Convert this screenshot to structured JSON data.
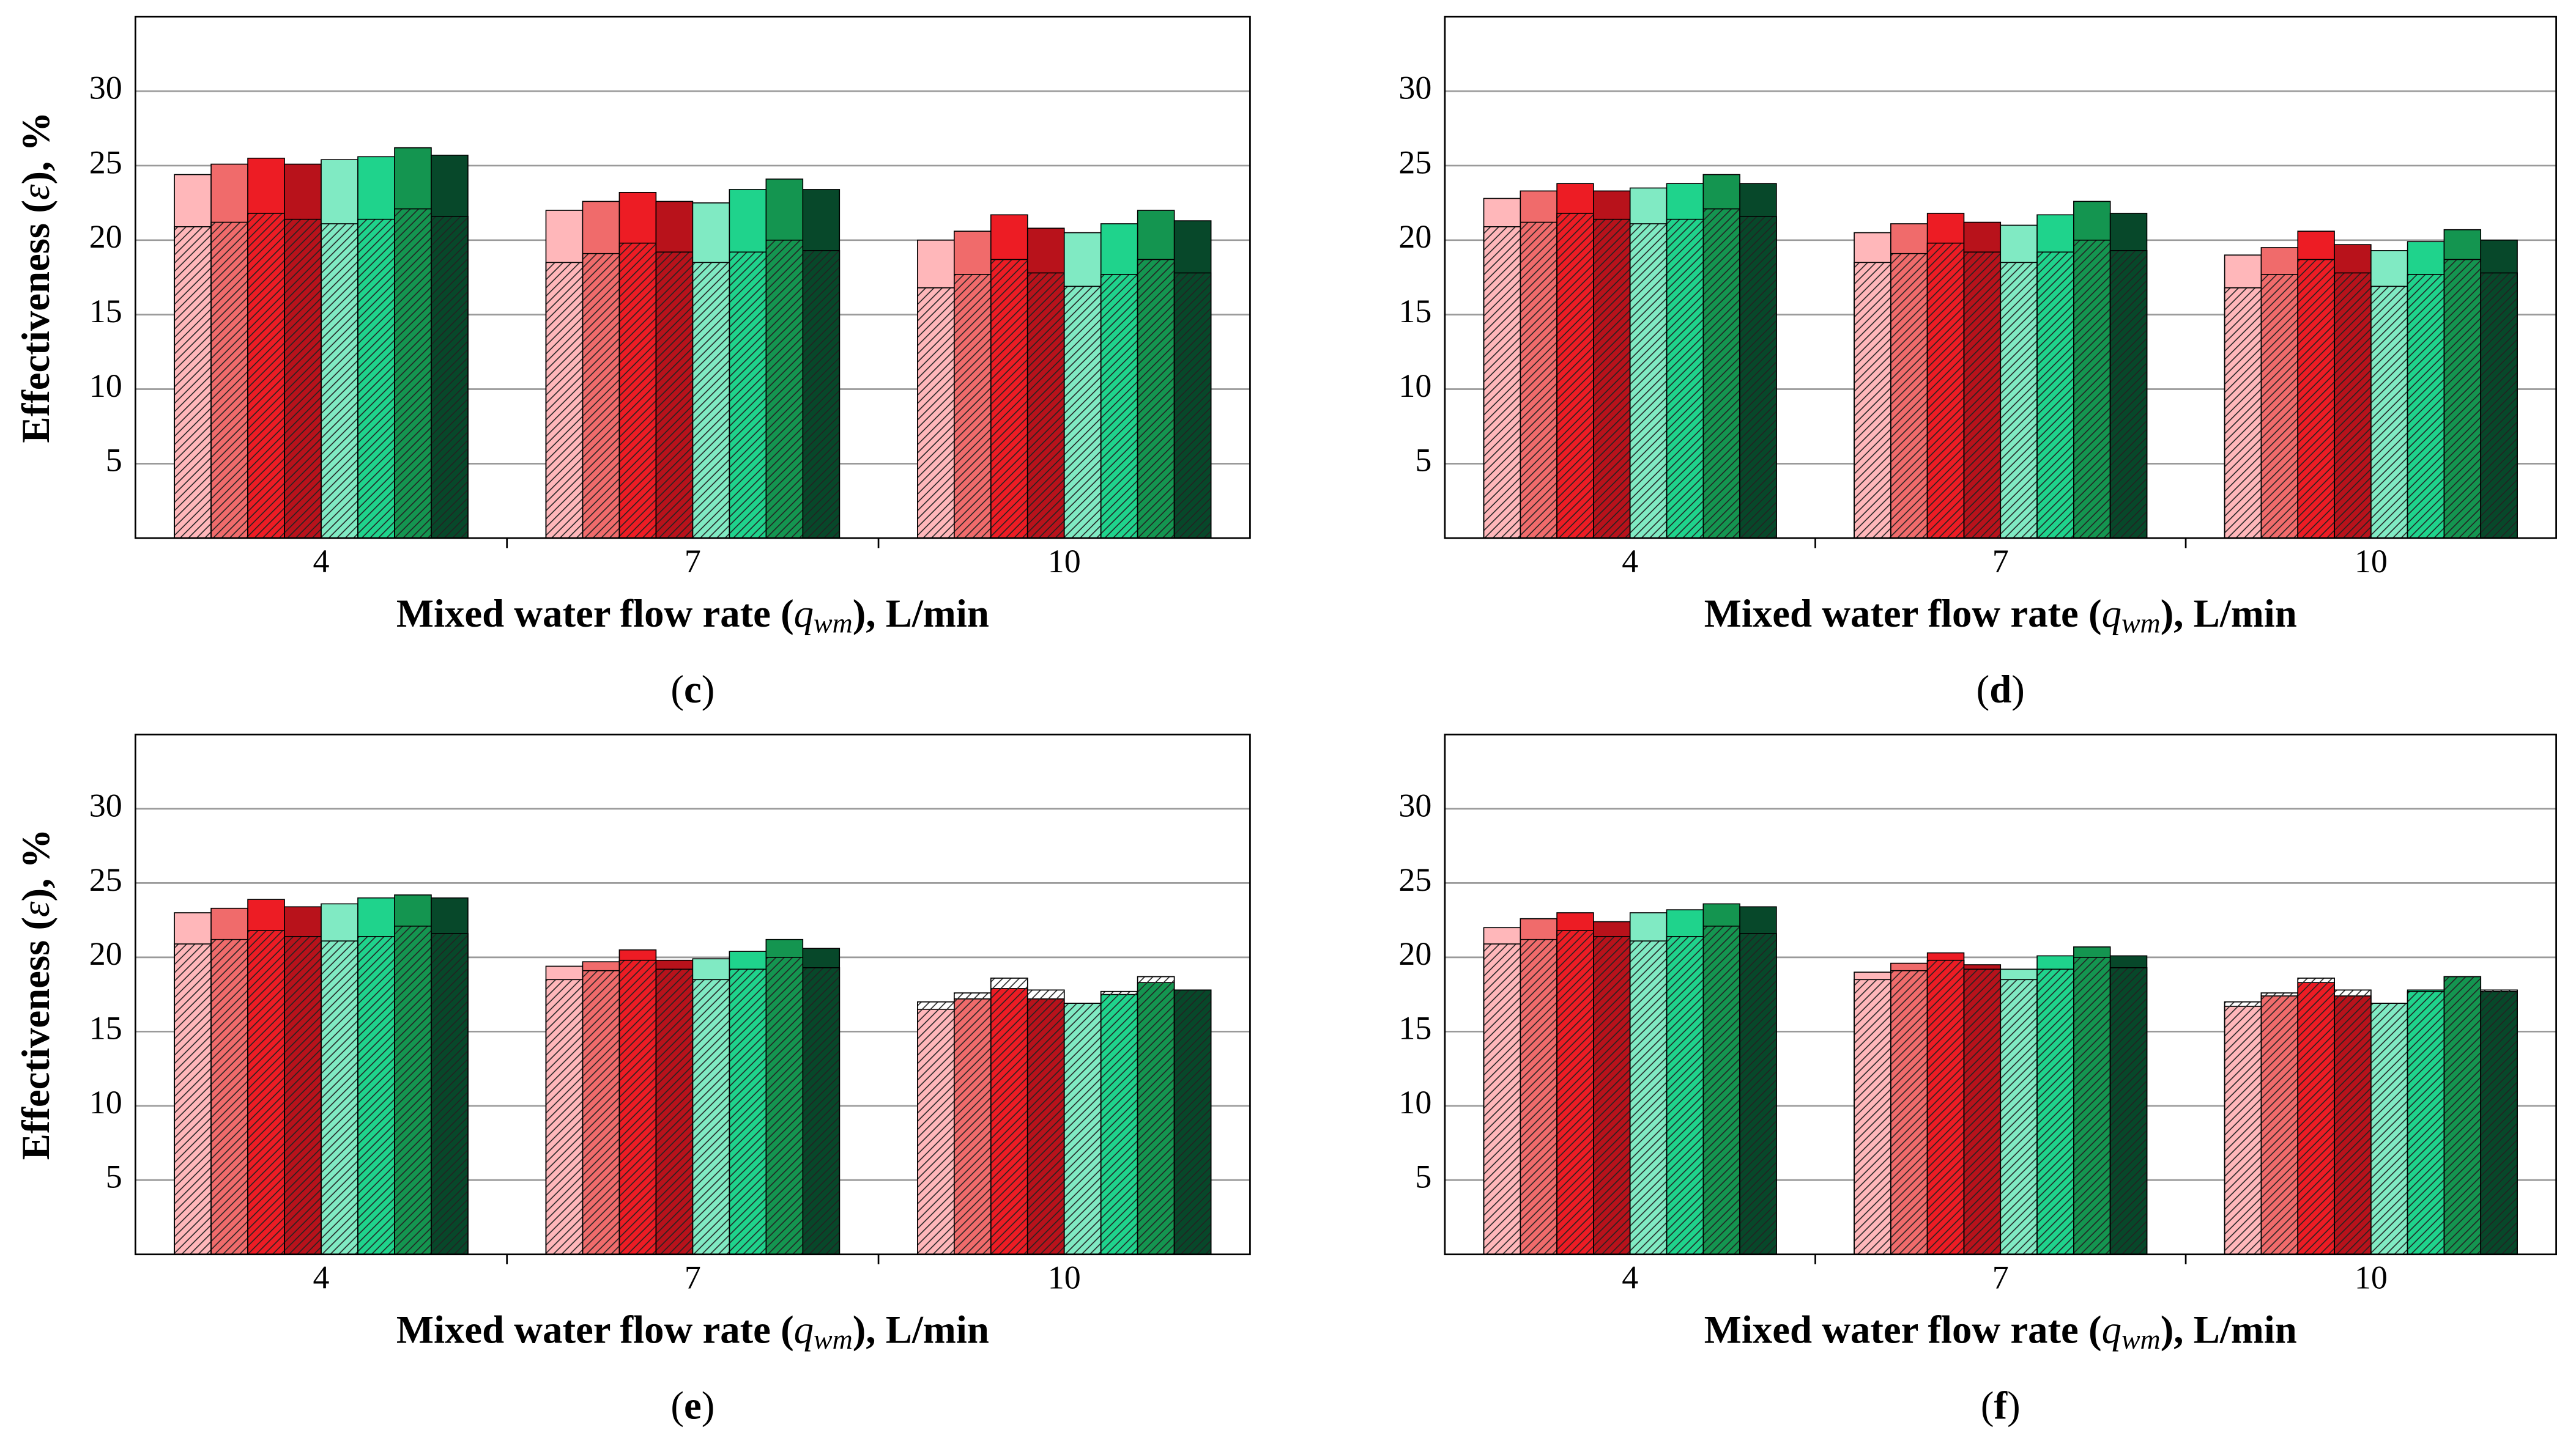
{
  "chart_data": [
    {
      "type": "bar",
      "caption": {
        "open": "(",
        "letter": "c",
        "close": ")"
      },
      "xlabel": {
        "before": "Mixed water flow rate (",
        "var": "q",
        "sub": "wm",
        "after": "), L/min"
      },
      "ylabel": {
        "before": "Effectiveness (",
        "var": "ε",
        "after": "), %"
      },
      "categories": [
        "4",
        "7",
        "10"
      ],
      "ylim": [
        0,
        35
      ],
      "yticks": [
        5,
        10,
        15,
        20,
        25,
        30
      ],
      "grid": true,
      "series": [
        {
          "color": "#ffb7ba",
          "values": [
            24.4,
            22.0,
            20.0
          ],
          "hatched_values": [
            20.9,
            18.5,
            16.8
          ]
        },
        {
          "color": "#f06b6b",
          "values": [
            25.1,
            22.6,
            20.6
          ],
          "hatched_values": [
            21.2,
            19.1,
            17.7
          ]
        },
        {
          "color": "#ed1c24",
          "values": [
            25.5,
            23.2,
            21.7
          ],
          "hatched_values": [
            21.8,
            19.8,
            18.7
          ]
        },
        {
          "color": "#b8121b",
          "values": [
            25.1,
            22.6,
            20.8
          ],
          "hatched_values": [
            21.4,
            19.2,
            17.8
          ]
        },
        {
          "color": "#80eac3",
          "values": [
            25.4,
            22.5,
            20.5
          ],
          "hatched_values": [
            21.1,
            18.5,
            16.9
          ]
        },
        {
          "color": "#1fd38c",
          "values": [
            25.6,
            23.4,
            21.1
          ],
          "hatched_values": [
            21.4,
            19.2,
            17.7
          ]
        },
        {
          "color": "#149550",
          "values": [
            26.2,
            24.1,
            22.0
          ],
          "hatched_values": [
            22.1,
            20.0,
            18.7
          ]
        },
        {
          "color": "#07482a",
          "values": [
            25.7,
            23.4,
            21.3
          ],
          "hatched_values": [
            21.6,
            19.3,
            17.8
          ]
        }
      ]
    },
    {
      "type": "bar",
      "caption": {
        "open": "(",
        "letter": "d",
        "close": ")"
      },
      "xlabel": {
        "before": "Mixed water flow rate (",
        "var": "q",
        "sub": "wm",
        "after": "), L/min"
      },
      "categories": [
        "4",
        "7",
        "10"
      ],
      "ylim": [
        0,
        35
      ],
      "yticks": [
        5,
        10,
        15,
        20,
        25,
        30
      ],
      "grid": true,
      "series": [
        {
          "color": "#ffb7ba",
          "values": [
            22.8,
            20.5,
            19.0
          ],
          "hatched_values": [
            20.9,
            18.5,
            16.8
          ]
        },
        {
          "color": "#f06b6b",
          "values": [
            23.3,
            21.1,
            19.5
          ],
          "hatched_values": [
            21.2,
            19.1,
            17.7
          ]
        },
        {
          "color": "#ed1c24",
          "values": [
            23.8,
            21.8,
            20.6
          ],
          "hatched_values": [
            21.8,
            19.8,
            18.7
          ]
        },
        {
          "color": "#b8121b",
          "values": [
            23.3,
            21.2,
            19.7
          ],
          "hatched_values": [
            21.4,
            19.2,
            17.8
          ]
        },
        {
          "color": "#80eac3",
          "values": [
            23.5,
            21.0,
            19.3
          ],
          "hatched_values": [
            21.1,
            18.5,
            16.9
          ]
        },
        {
          "color": "#1fd38c",
          "values": [
            23.8,
            21.7,
            19.9
          ],
          "hatched_values": [
            21.4,
            19.2,
            17.7
          ]
        },
        {
          "color": "#149550",
          "values": [
            24.4,
            22.6,
            20.7
          ],
          "hatched_values": [
            22.1,
            20.0,
            18.7
          ]
        },
        {
          "color": "#07482a",
          "values": [
            23.8,
            21.8,
            20.0
          ],
          "hatched_values": [
            21.6,
            19.3,
            17.8
          ]
        }
      ]
    },
    {
      "type": "bar",
      "caption": {
        "open": "(",
        "letter": "e",
        "close": ")"
      },
      "xlabel": {
        "before": "Mixed water flow rate (",
        "var": "q",
        "sub": "wm",
        "after": "), L/min"
      },
      "ylabel": {
        "before": "Effectiveness (",
        "var": "ε",
        "after": "), %"
      },
      "categories": [
        "4",
        "7",
        "10"
      ],
      "ylim": [
        0,
        35
      ],
      "yticks": [
        5,
        10,
        15,
        20,
        25,
        30
      ],
      "grid": true,
      "series": [
        {
          "color": "#ffb7ba",
          "values": [
            23.0,
            19.4,
            16.5
          ],
          "hatched_values": [
            20.9,
            18.5,
            17.0
          ]
        },
        {
          "color": "#f06b6b",
          "values": [
            23.3,
            19.7,
            17.2
          ],
          "hatched_values": [
            21.2,
            19.1,
            17.6
          ]
        },
        {
          "color": "#ed1c24",
          "values": [
            23.9,
            20.5,
            17.9
          ],
          "hatched_values": [
            21.8,
            19.8,
            18.6
          ]
        },
        {
          "color": "#b8121b",
          "values": [
            23.4,
            19.8,
            17.2
          ],
          "hatched_values": [
            21.4,
            19.2,
            17.8
          ]
        },
        {
          "color": "#80eac3",
          "values": [
            23.6,
            19.9,
            16.9
          ],
          "hatched_values": [
            21.1,
            18.5,
            16.9
          ]
        },
        {
          "color": "#1fd38c",
          "values": [
            24.0,
            20.4,
            17.5
          ],
          "hatched_values": [
            21.4,
            19.2,
            17.7
          ]
        },
        {
          "color": "#149550",
          "values": [
            24.2,
            21.2,
            18.3
          ],
          "hatched_values": [
            22.1,
            20.0,
            18.7
          ]
        },
        {
          "color": "#07482a",
          "values": [
            24.0,
            20.6,
            17.8
          ],
          "hatched_values": [
            21.6,
            19.3,
            17.8
          ]
        }
      ]
    },
    {
      "type": "bar",
      "caption": {
        "open": "(",
        "letter": "f",
        "close": ")"
      },
      "xlabel": {
        "before": "Mixed water flow rate (",
        "var": "q",
        "sub": "wm",
        "after": "), L/min"
      },
      "categories": [
        "4",
        "7",
        "10"
      ],
      "ylim": [
        0,
        35
      ],
      "yticks": [
        5,
        10,
        15,
        20,
        25,
        30
      ],
      "grid": true,
      "series": [
        {
          "color": "#ffb7ba",
          "values": [
            22.0,
            19.0,
            16.7
          ],
          "hatched_values": [
            20.9,
            18.5,
            17.0
          ]
        },
        {
          "color": "#f06b6b",
          "values": [
            22.6,
            19.6,
            17.4
          ],
          "hatched_values": [
            21.2,
            19.1,
            17.6
          ]
        },
        {
          "color": "#ed1c24",
          "values": [
            23.0,
            20.3,
            18.3
          ],
          "hatched_values": [
            21.8,
            19.8,
            18.6
          ]
        },
        {
          "color": "#b8121b",
          "values": [
            22.4,
            19.5,
            17.4
          ],
          "hatched_values": [
            21.4,
            19.2,
            17.8
          ]
        },
        {
          "color": "#80eac3",
          "values": [
            23.0,
            19.2,
            16.9
          ],
          "hatched_values": [
            21.1,
            18.5,
            16.9
          ]
        },
        {
          "color": "#1fd38c",
          "values": [
            23.2,
            20.1,
            17.8
          ],
          "hatched_values": [
            21.4,
            19.2,
            17.7
          ]
        },
        {
          "color": "#149550",
          "values": [
            23.6,
            20.7,
            18.7
          ],
          "hatched_values": [
            22.1,
            20.0,
            18.7
          ]
        },
        {
          "color": "#07482a",
          "values": [
            23.4,
            20.1,
            17.7
          ],
          "hatched_values": [
            21.6,
            19.3,
            17.8
          ]
        }
      ]
    }
  ]
}
